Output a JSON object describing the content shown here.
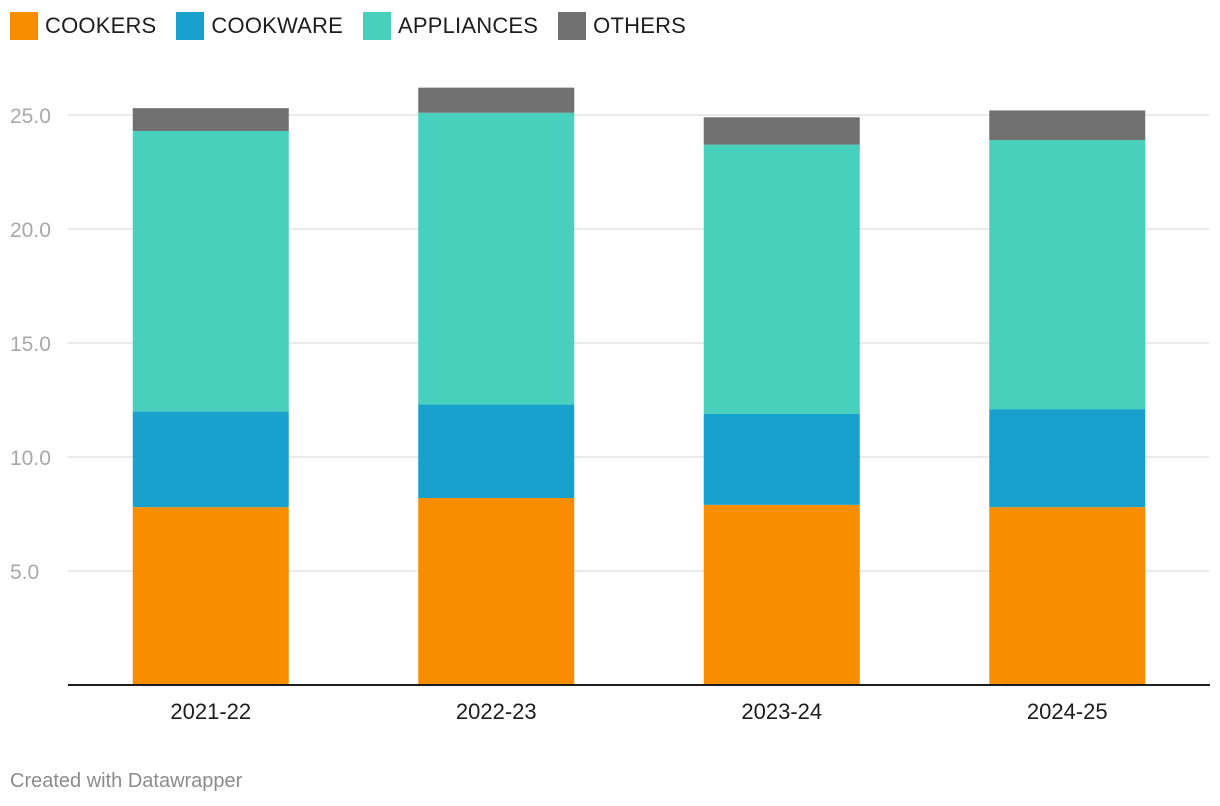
{
  "chart_data": {
    "type": "bar",
    "stacked": true,
    "categories": [
      "2021-22",
      "2022-23",
      "2023-24",
      "2024-25"
    ],
    "series": [
      {
        "name": "COOKERS",
        "color": "#f98d00",
        "values": [
          7.8,
          8.2,
          7.9,
          7.8
        ]
      },
      {
        "name": "COOKWARE",
        "color": "#18a1cd",
        "values": [
          4.2,
          4.1,
          4.0,
          4.3
        ]
      },
      {
        "name": "APPLIANCES",
        "color": "#47d1bd",
        "values": [
          12.3,
          12.8,
          11.8,
          11.8
        ]
      },
      {
        "name": "OTHERS",
        "color": "#717171",
        "values": [
          1.0,
          1.1,
          1.2,
          1.3
        ]
      }
    ],
    "yticks": [
      "5.0",
      "10.0",
      "15.0",
      "20.0",
      "25.0"
    ],
    "ytick_values": [
      5,
      10,
      15,
      20,
      25
    ],
    "ylim": [
      0,
      26.5
    ],
    "title": "",
    "xlabel": "",
    "ylabel": "",
    "grid": true,
    "legend_position": "top-left"
  },
  "footer": {
    "credit": "Created with Datawrapper"
  }
}
